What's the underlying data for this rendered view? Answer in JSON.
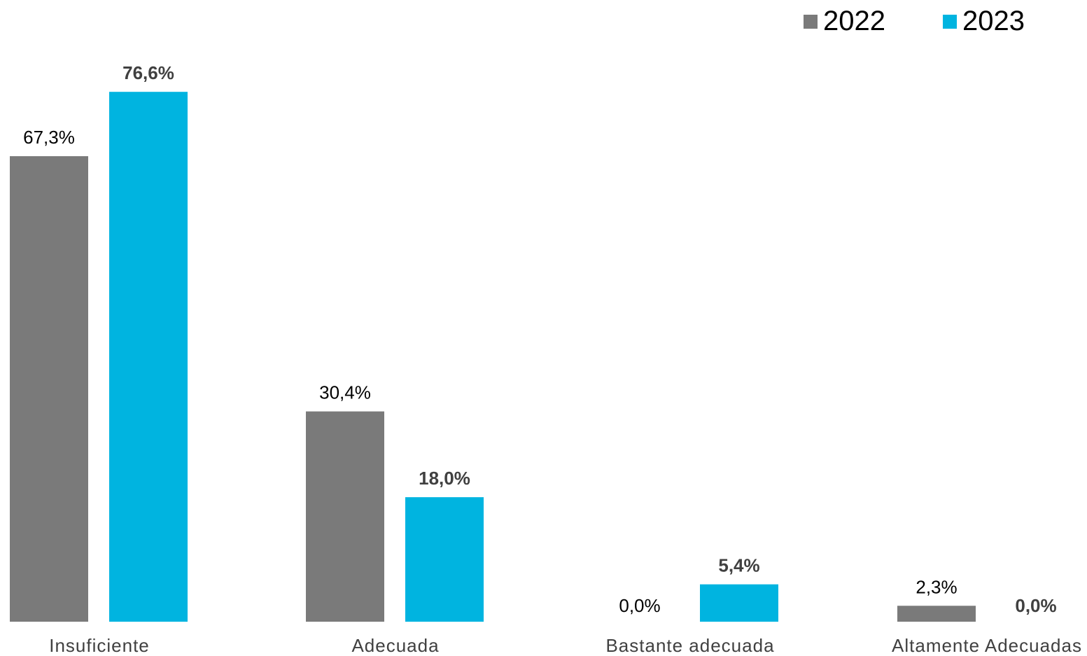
{
  "chart_data": {
    "type": "bar",
    "categories": [
      "Insuficiente",
      "Adecuada",
      "Bastante adecuada",
      "Altamente Adecuadas"
    ],
    "series": [
      {
        "name": "2022",
        "color": "#7a7a7a",
        "values": [
          67.3,
          30.4,
          0.0,
          2.3
        ],
        "labels": [
          "67,3%",
          "30,4%",
          "0,0%",
          "2,3%"
        ],
        "label_bold": false
      },
      {
        "name": "2023",
        "color": "#00b4e0",
        "values": [
          76.6,
          18.0,
          5.4,
          0.0
        ],
        "labels": [
          "76,6%",
          "18,0%",
          "5,4%",
          "0,0%"
        ],
        "label_bold": true
      }
    ],
    "title": "",
    "xlabel": "",
    "ylabel": "",
    "ylim": [
      0,
      100
    ],
    "grid": false,
    "legend": "top-right"
  }
}
